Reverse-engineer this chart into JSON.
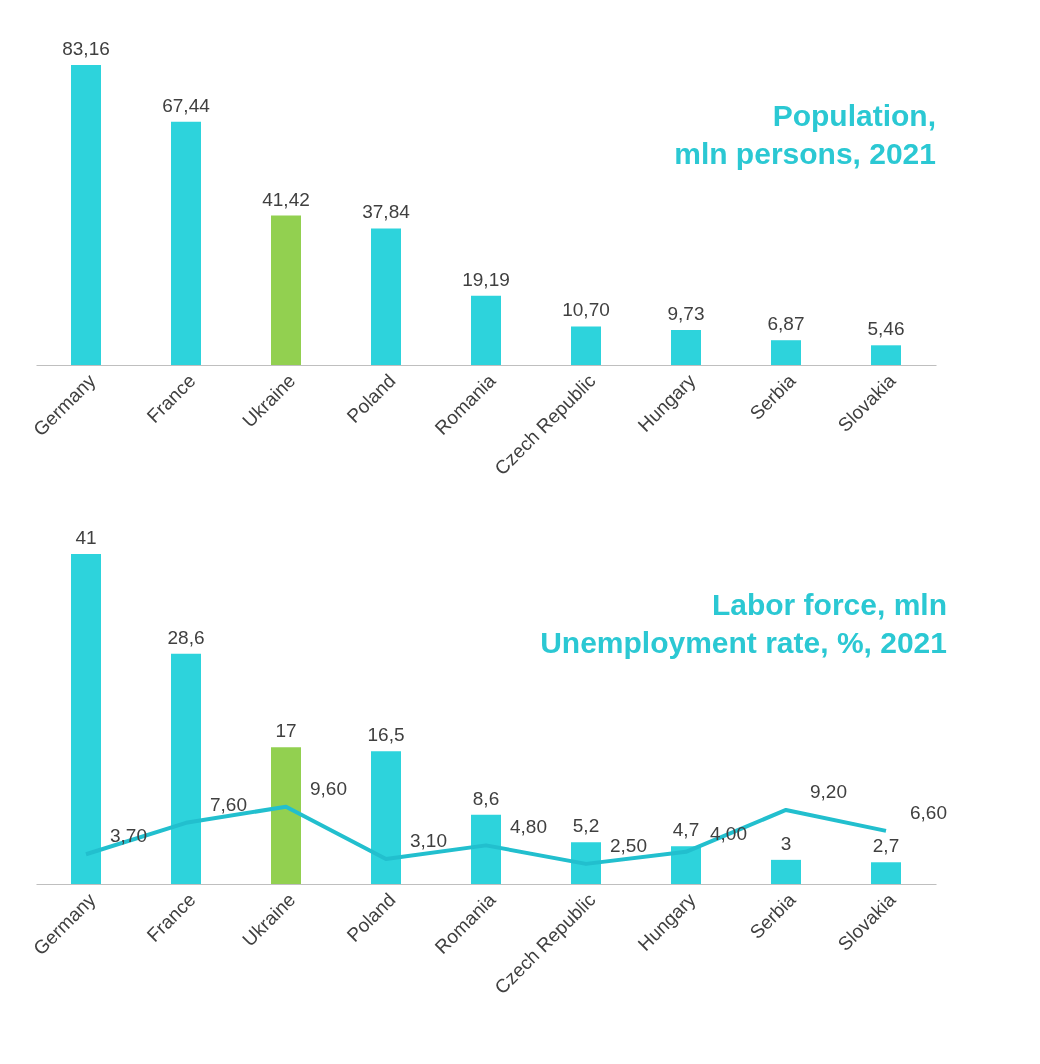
{
  "chart_data": [
    {
      "type": "bar",
      "title": "Population,\nmln persons, 2021",
      "categories": [
        "Germany",
        "France",
        "Ukraine",
        "Poland",
        "Romania",
        "Czech Republic",
        "Hungary",
        "Serbia",
        "Slovakia"
      ],
      "values": [
        83.16,
        67.44,
        41.42,
        37.84,
        19.19,
        10.7,
        9.73,
        6.87,
        5.46
      ],
      "value_labels": [
        "83,16",
        "67,44",
        "41,42",
        "37,84",
        "19,19",
        "10,70",
        "9,73",
        "6,87",
        "5,46"
      ],
      "colors": [
        "#2dd3dc",
        "#2dd3dc",
        "#92d050",
        "#2dd3dc",
        "#2dd3dc",
        "#2dd3dc",
        "#2dd3dc",
        "#2dd3dc",
        "#2dd3dc"
      ]
    },
    {
      "type": "bar",
      "title": "Labor force, mln\nUnemployment rate, %, 2021",
      "categories": [
        "Germany",
        "France",
        "Ukraine",
        "Poland",
        "Romania",
        "Czech Republic",
        "Hungary",
        "Serbia",
        "Slovakia"
      ],
      "series": [
        {
          "colors": [
            "#2dd3dc",
            "#2dd3dc",
            "#92d050",
            "#2dd3dc",
            "#2dd3dc",
            "#2dd3dc",
            "#2dd3dc",
            "#2dd3dc",
            "#2dd3dc"
          ],
          "values": [
            41,
            28.6,
            17,
            16.5,
            8.6,
            5.2,
            4.7,
            3,
            2.7
          ],
          "value_labels": [
            "41",
            "28,6",
            "17",
            "16,5",
            "8,6",
            "5,2",
            "4,7",
            "3",
            "2,7"
          ]
        },
        {
          "type": "line",
          "color": "#22bfce",
          "values": [
            3.7,
            7.6,
            9.6,
            3.1,
            4.8,
            2.5,
            4.0,
            9.2,
            6.6
          ],
          "value_labels": [
            "3,70",
            "7,60",
            "9,60",
            "3,10",
            "4,80",
            "2,50",
            "4,00",
            "9,20",
            "6,60"
          ]
        }
      ]
    }
  ]
}
